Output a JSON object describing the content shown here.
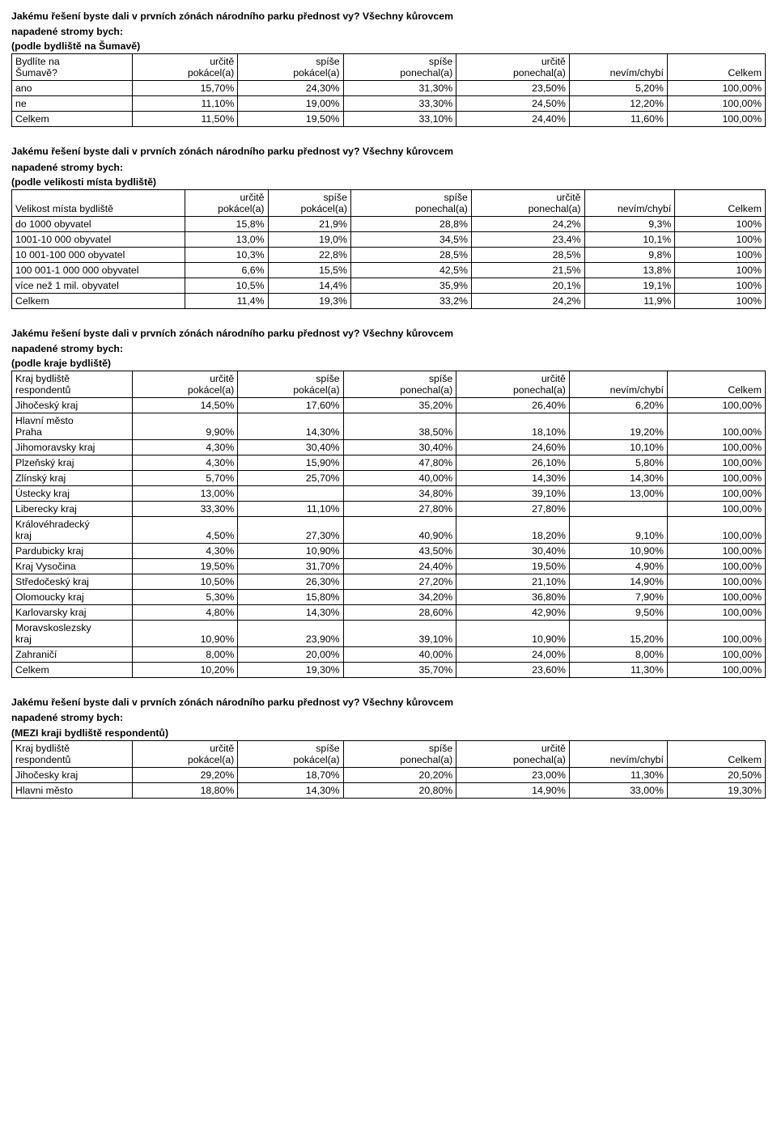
{
  "q_text_line1": "Jakému řešení byste dali v prvních zónách národního parku přednost vy? Všechny kůrovcem",
  "q_text_line2": "napadené stromy bych:",
  "sub_t1": "(podle bydliště na Šumavě)",
  "sub_t2": "(podle velikosti místa bydliště)",
  "sub_t3": "(podle kraje bydliště)",
  "sub_t4": "(MEZI kraji bydliště respondentů)",
  "h_urcite_pok": "určitě pokácel(a)",
  "h_spise_pok": "spíše pokácel(a)",
  "h_spise_pon": "spíše ponechal(a)",
  "h_urcite_pon": "určitě ponechal(a)",
  "h_nevim": "nevím/chybí",
  "h_celkem": "Celkem",
  "t1": {
    "rowhdr_l1": "Bydlíte na",
    "rowhdr_l2": "Šumavě?",
    "rows": [
      {
        "label": "ano",
        "c": [
          "15,70%",
          "24,30%",
          "31,30%",
          "23,50%",
          "5,20%",
          "100,00%"
        ]
      },
      {
        "label": "ne",
        "c": [
          "11,10%",
          "19,00%",
          "33,30%",
          "24,50%",
          "12,20%",
          "100,00%"
        ]
      },
      {
        "label": "Celkem",
        "c": [
          "11,50%",
          "19,50%",
          "33,10%",
          "24,40%",
          "11,60%",
          "100,00%"
        ]
      }
    ]
  },
  "t2": {
    "rowhdr": "Velikost místa bydliště",
    "rows": [
      {
        "label": "do 1000 obyvatel",
        "c": [
          "15,8%",
          "21,9%",
          "28,8%",
          "24,2%",
          "9,3%",
          "100%"
        ]
      },
      {
        "label": "1001-10 000 obyvatel",
        "c": [
          "13,0%",
          "19,0%",
          "34,5%",
          "23,4%",
          "10,1%",
          "100%"
        ]
      },
      {
        "label": "10 001-100 000 obyvatel",
        "c": [
          "10,3%",
          "22,8%",
          "28,5%",
          "28,5%",
          "9,8%",
          "100%"
        ]
      },
      {
        "label": "100 001-1 000 000 obyvatel",
        "c": [
          "6,6%",
          "15,5%",
          "42,5%",
          "21,5%",
          "13,8%",
          "100%"
        ]
      },
      {
        "label": "více než 1 mil. obyvatel",
        "c": [
          "10,5%",
          "14,4%",
          "35,9%",
          "20,1%",
          "19,1%",
          "100%"
        ]
      },
      {
        "label": "Celkem",
        "c": [
          "11,4%",
          "19,3%",
          "33,2%",
          "24,2%",
          "11,9%",
          "100%"
        ]
      }
    ]
  },
  "t3": {
    "rowhdr_l1": "Kraj bydliště",
    "rowhdr_l2": "respondentů",
    "rows": [
      {
        "label": "Jihočeský kraj",
        "c": [
          "14,50%",
          "17,60%",
          "35,20%",
          "26,40%",
          "6,20%",
          "100,00%"
        ]
      },
      {
        "label_l1": "Hlavní město",
        "label_l2": "Praha",
        "c": [
          "9,90%",
          "14,30%",
          "38,50%",
          "18,10%",
          "19,20%",
          "100,00%"
        ]
      },
      {
        "label": "Jihomoravsky kraj",
        "c": [
          "4,30%",
          "30,40%",
          "30,40%",
          "24,60%",
          "10,10%",
          "100,00%"
        ]
      },
      {
        "label": "Plzeňský kraj",
        "c": [
          "4,30%",
          "15,90%",
          "47,80%",
          "26,10%",
          "5,80%",
          "100,00%"
        ]
      },
      {
        "label": "Zlínský kraj",
        "c": [
          "5,70%",
          "25,70%",
          "40,00%",
          "14,30%",
          "14,30%",
          "100,00%"
        ]
      },
      {
        "label": "Ústecky kraj",
        "c": [
          "13,00%",
          "",
          "34,80%",
          "39,10%",
          "13,00%",
          "100,00%"
        ]
      },
      {
        "label": "Liberecky kraj",
        "c": [
          "33,30%",
          "11,10%",
          "27,80%",
          "27,80%",
          "",
          "100,00%"
        ]
      },
      {
        "label_l1": "Královéhradecký",
        "label_l2": "kraj",
        "c": [
          "4,50%",
          "27,30%",
          "40,90%",
          "18,20%",
          "9,10%",
          "100,00%"
        ]
      },
      {
        "label": "Pardubicky kraj",
        "c": [
          "4,30%",
          "10,90%",
          "43,50%",
          "30,40%",
          "10,90%",
          "100,00%"
        ]
      },
      {
        "label": "Kraj Vysočina",
        "c": [
          "19,50%",
          "31,70%",
          "24,40%",
          "19,50%",
          "4,90%",
          "100,00%"
        ]
      },
      {
        "label": "Středočeský kraj",
        "c": [
          "10,50%",
          "26,30%",
          "27,20%",
          "21,10%",
          "14,90%",
          "100,00%"
        ]
      },
      {
        "label": "Olomoucky kraj",
        "c": [
          "5,30%",
          "15,80%",
          "34,20%",
          "36,80%",
          "7,90%",
          "100,00%"
        ]
      },
      {
        "label": "Karlovarsky kraj",
        "c": [
          "4,80%",
          "14,30%",
          "28,60%",
          "42,90%",
          "9,50%",
          "100,00%"
        ]
      },
      {
        "label_l1": "Moravskoslezsky",
        "label_l2": "kraj",
        "c": [
          "10,90%",
          "23,90%",
          "39,10%",
          "10,90%",
          "15,20%",
          "100,00%"
        ]
      },
      {
        "label": "Zahraničí",
        "c": [
          "8,00%",
          "20,00%",
          "40,00%",
          "24,00%",
          "8,00%",
          "100,00%"
        ]
      },
      {
        "label": "Celkem",
        "c": [
          "10,20%",
          "19,30%",
          "35,70%",
          "23,60%",
          "11,30%",
          "100,00%"
        ]
      }
    ]
  },
  "t4": {
    "rowhdr_l1": "Kraj bydliště",
    "rowhdr_l2": "respondentů",
    "rows": [
      {
        "label": "Jihočesky kraj",
        "c": [
          "29,20%",
          "18,70%",
          "20,20%",
          "23,00%",
          "11,30%",
          "20,50%"
        ]
      },
      {
        "label": "Hlavni město",
        "c": [
          "18,80%",
          "14,30%",
          "20,80%",
          "14,90%",
          "33,00%",
          "19,30%"
        ]
      }
    ]
  }
}
